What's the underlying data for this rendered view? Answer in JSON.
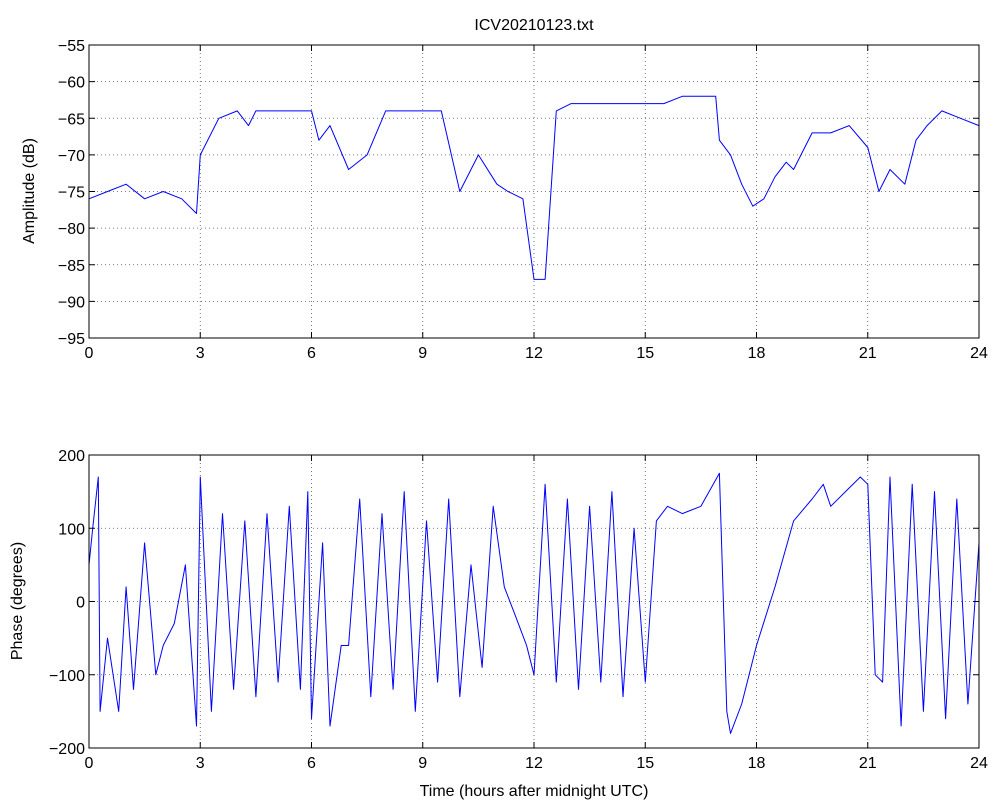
{
  "chart_data": [
    {
      "type": "line",
      "title": "ICV20210123.txt",
      "xlabel": "",
      "ylabel": "Amplitude (dB)",
      "xlim": [
        0,
        24
      ],
      "ylim": [
        -95,
        -55
      ],
      "xticks": [
        0,
        3,
        6,
        9,
        12,
        15,
        18,
        21,
        24
      ],
      "yticks": [
        -95,
        -90,
        -85,
        -80,
        -75,
        -70,
        -65,
        -60,
        -55
      ],
      "xtick_labels": [
        "0",
        "3",
        "6",
        "9",
        "12",
        "15",
        "18",
        "21",
        "24"
      ],
      "ytick_labels": [
        "−95",
        "−90",
        "−85",
        "−80",
        "−75",
        "−70",
        "−65",
        "−60",
        "−55"
      ],
      "grid": true,
      "color": "#0000ff",
      "series": [
        {
          "x": [
            0.0,
            0.5,
            1.0,
            1.5,
            2.0,
            2.5,
            2.9,
            3.0,
            3.5,
            4.0,
            4.3,
            4.5,
            5.0,
            5.5,
            6.0,
            6.2,
            6.5,
            7.0,
            7.5,
            8.0,
            8.5,
            9.0,
            9.5,
            10.0,
            10.5,
            11.0,
            11.3,
            11.7,
            12.0,
            12.3,
            12.6,
            13.0,
            13.5,
            14.0,
            14.5,
            15.0,
            15.5,
            16.0,
            16.5,
            16.9,
            17.0,
            17.3,
            17.6,
            17.9,
            18.2,
            18.5,
            18.8,
            19.0,
            19.5,
            20.0,
            20.5,
            21.0,
            21.3,
            21.6,
            22.0,
            22.3,
            22.6,
            23.0,
            23.5,
            24.0
          ],
          "y": [
            -76,
            -75,
            -74,
            -76,
            -75,
            -76,
            -78,
            -70,
            -65,
            -64,
            -66,
            -64,
            -64,
            -64,
            -64,
            -68,
            -66,
            -72,
            -70,
            -64,
            -64,
            -64,
            -64,
            -75,
            -70,
            -74,
            -75,
            -76,
            -87,
            -87,
            -64,
            -63,
            -63,
            -63,
            -63,
            -63,
            -63,
            -62,
            -62,
            -62,
            -68,
            -70,
            -74,
            -77,
            -76,
            -73,
            -71,
            -72,
            -67,
            -67,
            -66,
            -69,
            -75,
            -72,
            -74,
            -68,
            -66,
            -64,
            -65,
            -66
          ]
        }
      ]
    },
    {
      "type": "line",
      "title": "",
      "xlabel": "Time (hours after midnight UTC)",
      "ylabel": "Phase (degrees)",
      "xlim": [
        0,
        24
      ],
      "ylim": [
        -200,
        200
      ],
      "xticks": [
        0,
        3,
        6,
        9,
        12,
        15,
        18,
        21,
        24
      ],
      "yticks": [
        -200,
        -100,
        0,
        100,
        200
      ],
      "xtick_labels": [
        "0",
        "3",
        "6",
        "9",
        "12",
        "15",
        "18",
        "21",
        "24"
      ],
      "ytick_labels": [
        "−200",
        "−100",
        "0",
        "100",
        "200"
      ],
      "grid": true,
      "color": "#0000ff",
      "series": [
        {
          "x": [
            0.0,
            0.1,
            0.25,
            0.3,
            0.5,
            0.8,
            1.0,
            1.2,
            1.5,
            1.8,
            2.0,
            2.3,
            2.6,
            2.9,
            3.0,
            3.3,
            3.6,
            3.9,
            4.2,
            4.5,
            4.8,
            5.1,
            5.4,
            5.7,
            5.9,
            6.0,
            6.3,
            6.5,
            6.8,
            7.0,
            7.3,
            7.6,
            7.9,
            8.2,
            8.5,
            8.8,
            9.1,
            9.4,
            9.7,
            10.0,
            10.3,
            10.6,
            10.9,
            11.2,
            11.5,
            11.8,
            12.0,
            12.3,
            12.6,
            12.9,
            13.2,
            13.5,
            13.8,
            14.1,
            14.4,
            14.7,
            15.0,
            15.3,
            15.6,
            16.0,
            16.5,
            17.0,
            17.2,
            17.3,
            17.6,
            18.0,
            18.5,
            19.0,
            19.5,
            19.8,
            20.0,
            20.4,
            20.8,
            21.0,
            21.2,
            21.4,
            21.6,
            21.9,
            22.2,
            22.5,
            22.8,
            23.1,
            23.4,
            23.7,
            24.0
          ],
          "y": [
            50,
            100,
            170,
            -150,
            -50,
            -150,
            20,
            -120,
            80,
            -100,
            -60,
            -30,
            50,
            -170,
            170,
            -150,
            120,
            -120,
            110,
            -130,
            120,
            -110,
            130,
            -120,
            150,
            -160,
            80,
            -170,
            -60,
            -60,
            140,
            -130,
            120,
            -120,
            150,
            -150,
            110,
            -110,
            140,
            -130,
            50,
            -90,
            130,
            20,
            -20,
            -60,
            -100,
            160,
            -110,
            140,
            -120,
            130,
            -110,
            150,
            -130,
            100,
            -110,
            110,
            130,
            120,
            130,
            175,
            -150,
            -180,
            -140,
            -60,
            20,
            110,
            140,
            160,
            130,
            150,
            170,
            160,
            -100,
            -110,
            170,
            -170,
            160,
            -150,
            150,
            -160,
            140,
            -140,
            80
          ]
        }
      ]
    }
  ]
}
